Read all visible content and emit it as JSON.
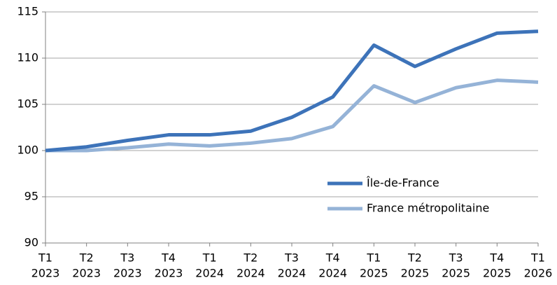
{
  "chart_data": {
    "type": "line",
    "categories": [
      [
        "T1",
        "2023"
      ],
      [
        "T2",
        "2023"
      ],
      [
        "T3",
        "2023"
      ],
      [
        "T4",
        "2023"
      ],
      [
        "T1",
        "2024"
      ],
      [
        "T2",
        "2024"
      ],
      [
        "T3",
        "2024"
      ],
      [
        "T4",
        "2024"
      ],
      [
        "T1",
        "2025"
      ],
      [
        "T2",
        "2025"
      ],
      [
        "T3",
        "2025"
      ],
      [
        "T4",
        "2025"
      ],
      [
        "T1",
        "2026"
      ]
    ],
    "series": [
      {
        "name": "Île-de-France",
        "color": "#3d73b9",
        "values": [
          100,
          100.4,
          101.1,
          101.7,
          101.7,
          102.1,
          103.6,
          105.8,
          111.4,
          109.1,
          111.0,
          112.7,
          112.9
        ]
      },
      {
        "name": "France métropolitaine",
        "color": "#95b3d7",
        "values": [
          100,
          100.0,
          100.3,
          100.7,
          100.5,
          100.8,
          101.3,
          102.6,
          107.0,
          105.2,
          106.8,
          107.6,
          107.4
        ]
      }
    ],
    "ylim": [
      90,
      115
    ],
    "yticks": [
      90,
      95,
      100,
      105,
      110,
      115
    ],
    "grid": true
  }
}
